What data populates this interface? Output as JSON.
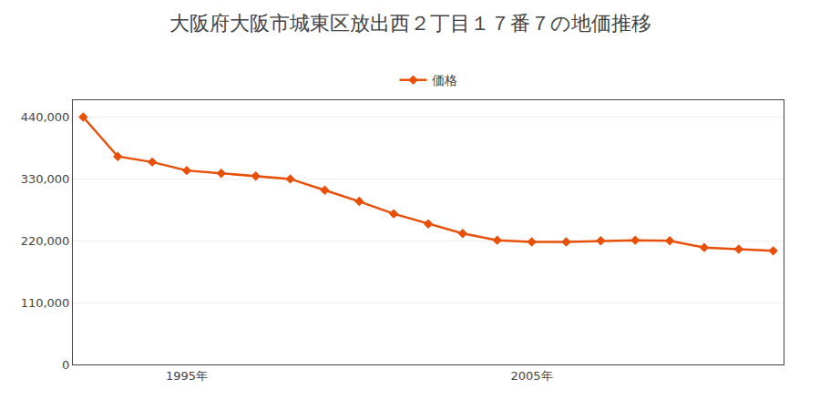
{
  "chart_data": {
    "type": "line",
    "title": "大阪府大阪市城東区放出西２丁目１７番７の地価推移",
    "x": [
      1992,
      1993,
      1994,
      1995,
      1996,
      1997,
      1998,
      1999,
      2000,
      2001,
      2002,
      2003,
      2004,
      2005,
      2006,
      2007,
      2008,
      2009,
      2010,
      2011,
      2012
    ],
    "series": [
      {
        "name": "価格",
        "color": "#e8500a",
        "marker": "diamond",
        "values": [
          440000,
          370000,
          360000,
          345000,
          340000,
          335000,
          330000,
          310000,
          290000,
          268000,
          250000,
          233000,
          221000,
          218000,
          218000,
          220000,
          221000,
          220000,
          208000,
          205000,
          202000
        ]
      }
    ],
    "xlim": [
      1991.7,
      2012.3
    ],
    "xticks": [
      {
        "value": 1995,
        "label": "1995年"
      },
      {
        "value": 2005,
        "label": "2005年"
      }
    ],
    "ylim": [
      0,
      470000
    ],
    "yticks": [
      0,
      {
        "value": 110000,
        "label": "110,000"
      },
      {
        "value": 220000,
        "label": "220,000"
      },
      {
        "value": 330000,
        "label": "330,000"
      },
      {
        "value": 440000,
        "label": "440,000"
      }
    ],
    "grid": true,
    "legend": "top"
  }
}
